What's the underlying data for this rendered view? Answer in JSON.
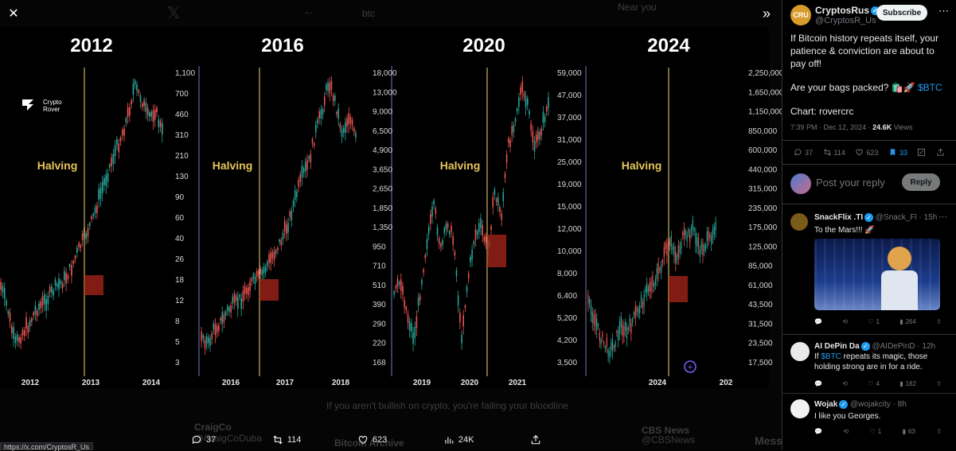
{
  "media": {
    "years": [
      "2012",
      "2016",
      "2020",
      "2024"
    ],
    "halving_label": "Halving",
    "watermark": {
      "line1": "Crypto",
      "line2": "Rover"
    },
    "panels": [
      {
        "ticks": [
          "1,100",
          "700",
          "460",
          "310",
          "210",
          "130",
          "90",
          "60",
          "40",
          "26",
          "18",
          "12",
          "8",
          "5",
          "3"
        ],
        "xlabels": [
          "2012",
          "2013",
          "2014"
        ]
      },
      {
        "ticks": [
          "18,000",
          "13,000",
          "9,000",
          "6,500",
          "4,900",
          "3,650",
          "2,650",
          "1,850",
          "1,350",
          "950",
          "710",
          "510",
          "390",
          "290",
          "220",
          "168"
        ],
        "xlabels": [
          "2016",
          "2017",
          "2018"
        ]
      },
      {
        "ticks": [
          "59,000",
          "47,000",
          "37,000",
          "31,000",
          "25,000",
          "19,000",
          "15,000",
          "12,000",
          "10,000",
          "8,000",
          "6,400",
          "5,200",
          "4,200",
          "3,500"
        ],
        "xlabels": [
          "2019",
          "2020",
          "2021"
        ]
      },
      {
        "ticks": [
          "2,250,000",
          "1,650,000",
          "1,150,000",
          "850,000",
          "600,000",
          "440,000",
          "315,000",
          "235,000",
          "175,000",
          "125,000",
          "85,000",
          "61,000",
          "43,500",
          "31,500",
          "23,500",
          "17,500"
        ],
        "xlabels": [
          "2024",
          "202"
        ]
      }
    ]
  },
  "background": {
    "search_text": "btc",
    "near_you": "Near you",
    "bg_post": "If you aren't bullish on crypto, you're failing your bloodline",
    "bg_user": "CraigCo",
    "bg_user_handle": "@CraigCoDuba",
    "bg_news": "CBS News",
    "bg_news_handle": "@CBSNews",
    "bg_archive": "Bitcoin Archive",
    "bg_message": "Messa"
  },
  "actionbar": {
    "replies": "37",
    "reposts": "114",
    "likes": "623",
    "views": "24K"
  },
  "status_url": "https://x.com/CryptosR_Us",
  "tweet": {
    "name": "CryptosRus",
    "handle": "@CryptosR_Us",
    "subscribe_label": "Subscribe",
    "line1": "If Bitcoin history repeats itself, your patience & conviction are about to pay off!",
    "line2_prefix": "Are your bags packed? 🛍️🚀",
    "cashtag": "$BTC",
    "line3": "Chart: rovercrc",
    "time": "7:39 PM · Dec 12, 2024 · ",
    "views_count": "24.6K",
    "views_label": " Views",
    "replies": "37",
    "reposts": "114",
    "likes": "623",
    "bookmarks": "33"
  },
  "reply_box": {
    "placeholder": "Post your reply",
    "button": "Reply"
  },
  "replies": [
    {
      "name": "SnackFlix .TI",
      "handle": "@Snack_Fl",
      "time": "· 15h",
      "text": "To the Mars!!! 🚀",
      "replies": "",
      "reposts": "",
      "likes": "1",
      "views": "264"
    },
    {
      "name": "AI DePin Da",
      "handle": "@AIDePinD",
      "time": "· 12h",
      "text_prefix": "If ",
      "cashtag": "$BTC",
      "text_suffix": " repeats its magic, those holding strong are in for a ride.",
      "replies": "",
      "reposts": "",
      "likes": "4",
      "views": "182"
    },
    {
      "name": "Wojak",
      "handle": "@wojakcity",
      "time": "· 8h",
      "text": "I like you Georges.",
      "replies": "",
      "reposts": "",
      "likes": "1",
      "views": "63"
    }
  ],
  "colors": {
    "accent": "#1d9bf0",
    "halving_line": "#c9b458",
    "halving_text": "#e4c55a",
    "green": "#26a69a",
    "red": "#ef5350",
    "box": "#b7281d"
  }
}
